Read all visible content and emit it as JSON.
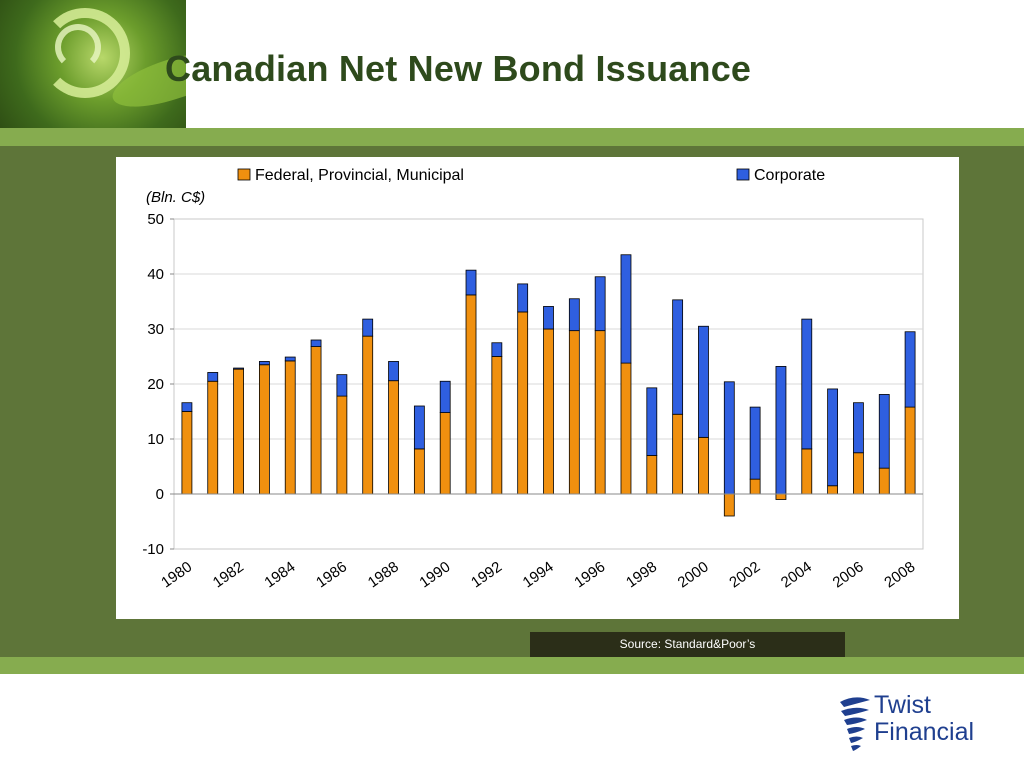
{
  "page": {
    "title": "Canadian Net New Bond Issuance",
    "source": "Source: Standard&Poor’s",
    "logo": {
      "line1": "Twist",
      "line2": "Financial"
    }
  },
  "colors": {
    "title": "#2e4a1c",
    "band_light": "#86ac4f",
    "band_dark": "#5e7539",
    "series_fpm": "#f0900f",
    "series_corporate": "#2f5fe0",
    "logo_blue": "#1f3f8f"
  },
  "chart_data": {
    "type": "bar",
    "stacked": true,
    "ylabel": "(Bln. C$)",
    "ylim": [
      -10,
      50
    ],
    "yticks": [
      -10,
      0,
      10,
      20,
      30,
      40,
      50
    ],
    "grid": true,
    "legend_position": "top",
    "categories": [
      "1980",
      "1981",
      "1982",
      "1983",
      "1984",
      "1985",
      "1986",
      "1987",
      "1988",
      "1989",
      "1990",
      "1991",
      "1992",
      "1993",
      "1994",
      "1995",
      "1996",
      "1997",
      "1998",
      "1999",
      "2000",
      "2001",
      "2002",
      "2003",
      "2004",
      "2005",
      "2006",
      "2007",
      "2008"
    ],
    "xtick_labels": [
      "1980",
      "1982",
      "1984",
      "1986",
      "1988",
      "1990",
      "1992",
      "1994",
      "1996",
      "1998",
      "2000",
      "2002",
      "2004",
      "2006",
      "2008"
    ],
    "series": [
      {
        "name": "Federal, Provincial, Municipal",
        "color": "#f0900f",
        "values": [
          15,
          20.5,
          22.7,
          23.5,
          24.2,
          26.8,
          17.8,
          28.7,
          20.6,
          8.2,
          14.8,
          36.2,
          25,
          33.1,
          30,
          29.7,
          29.7,
          23.8,
          7,
          14.5,
          10.3,
          -4,
          2.7,
          -1,
          8.2,
          1.5,
          7.5,
          4.7,
          15.8
        ]
      },
      {
        "name": "Corporate",
        "color": "#2f5fe0",
        "values": [
          1.6,
          1.6,
          0.2,
          0.6,
          0.7,
          1.2,
          3.9,
          3.1,
          3.5,
          7.8,
          5.7,
          4.5,
          2.5,
          5.1,
          4.1,
          5.8,
          9.8,
          19.7,
          12.3,
          20.8,
          20.2,
          20.4,
          13.1,
          23.2,
          23.6,
          17.6,
          9.1,
          13.4,
          13.7
        ]
      }
    ]
  }
}
